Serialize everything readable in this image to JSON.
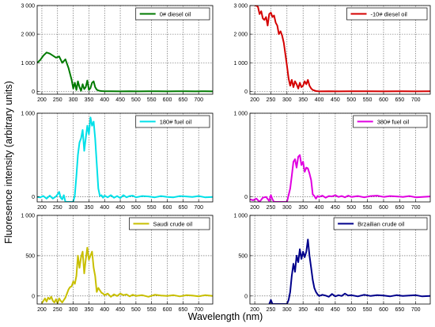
{
  "figure": {
    "ylabel": "Fluoresence intensity (arbitrary units)",
    "xlabel": "Wavelength (nm)"
  },
  "chart_data": [
    {
      "type": "line",
      "title": "",
      "xlim": [
        185,
        745
      ],
      "ylim": [
        -100,
        3000
      ],
      "xticks": [
        200,
        250,
        300,
        350,
        400,
        450,
        500,
        550,
        600,
        650,
        700
      ],
      "xticklabels": [
        "200",
        "250",
        "300",
        "350",
        "400",
        "450",
        "500",
        "550",
        "600",
        "650",
        "700"
      ],
      "yticks": [
        0,
        1000,
        2000,
        3000
      ],
      "yticklabels": [
        "0",
        "1 000",
        "2 000",
        "3 000"
      ],
      "grid": true,
      "legend_position": "top-right",
      "series": [
        {
          "name": "0# diesel oil",
          "color": "#007a00",
          "x": [
            185,
            195,
            205,
            215,
            225,
            235,
            245,
            255,
            265,
            275,
            285,
            295,
            300,
            305,
            310,
            315,
            320,
            325,
            330,
            335,
            340,
            345,
            350,
            355,
            360,
            365,
            370,
            375,
            380,
            385,
            390,
            400,
            420,
            450,
            480,
            510,
            540,
            570,
            600,
            630,
            660,
            690,
            720,
            745
          ],
          "y": [
            1000,
            1100,
            1250,
            1360,
            1320,
            1250,
            1180,
            1220,
            1000,
            1120,
            820,
            400,
            100,
            300,
            50,
            350,
            150,
            20,
            250,
            80,
            150,
            380,
            50,
            120,
            300,
            350,
            150,
            60,
            30,
            20,
            10,
            5,
            5,
            0,
            5,
            0,
            5,
            5,
            0,
            5,
            5,
            0,
            5,
            0
          ]
        }
      ]
    },
    {
      "type": "line",
      "title": "",
      "xlim": [
        185,
        745
      ],
      "ylim": [
        -100,
        3000
      ],
      "xticks": [
        200,
        250,
        300,
        350,
        400,
        450,
        500,
        550,
        600,
        650,
        700
      ],
      "xticklabels": [
        "200",
        "250",
        "300",
        "350",
        "400",
        "450",
        "500",
        "550",
        "600",
        "650",
        "700"
      ],
      "yticks": [
        0,
        1000,
        2000,
        3000
      ],
      "yticklabels": [
        "0",
        "1 000",
        "2 000",
        "3 000"
      ],
      "grid": true,
      "legend_position": "top-right",
      "series": [
        {
          "name": "-10# diesel oil",
          "color": "#d40000",
          "x": [
            200,
            205,
            210,
            215,
            220,
            225,
            230,
            235,
            240,
            245,
            250,
            255,
            260,
            265,
            270,
            275,
            280,
            285,
            290,
            295,
            300,
            305,
            310,
            315,
            320,
            325,
            330,
            335,
            340,
            345,
            350,
            355,
            360,
            365,
            370,
            375,
            380,
            390,
            400,
            430,
            460,
            500,
            550,
            600,
            650,
            700,
            745
          ],
          "y": [
            3000,
            3000,
            2950,
            2700,
            2800,
            2550,
            2500,
            2600,
            2300,
            2700,
            2750,
            2600,
            2650,
            2400,
            2300,
            2000,
            2100,
            1950,
            1700,
            1300,
            900,
            450,
            200,
            400,
            150,
            350,
            250,
            100,
            300,
            150,
            200,
            350,
            250,
            400,
            200,
            100,
            50,
            10,
            0,
            5,
            0,
            5,
            5,
            0,
            5,
            0,
            5
          ]
        }
      ]
    },
    {
      "type": "line",
      "title": "",
      "xlim": [
        185,
        745
      ],
      "ylim": [
        -60,
        1000
      ],
      "xticks": [
        200,
        250,
        300,
        350,
        400,
        450,
        500,
        550,
        600,
        650,
        700
      ],
      "xticklabels": [
        "200",
        "250",
        "300",
        "350",
        "400",
        "450",
        "500",
        "550",
        "600",
        "650",
        "700"
      ],
      "yticks": [
        0,
        1000
      ],
      "yticklabels": [
        "0",
        "1 000"
      ],
      "grid": true,
      "legend_position": "top-right",
      "series": [
        {
          "name": "180# fuel oil",
          "color": "#00e0e8",
          "x": [
            185,
            195,
            205,
            215,
            225,
            235,
            245,
            250,
            255,
            260,
            265,
            270,
            275,
            280,
            285,
            290,
            295,
            300,
            305,
            310,
            315,
            320,
            325,
            330,
            335,
            340,
            345,
            350,
            355,
            360,
            365,
            370,
            375,
            380,
            385,
            390,
            395,
            400,
            410,
            420,
            430,
            440,
            450,
            460,
            470,
            480,
            490,
            500,
            520,
            540,
            560,
            580,
            600,
            620,
            640,
            660,
            680,
            700,
            720,
            745
          ],
          "y": [
            0,
            -5,
            10,
            -20,
            15,
            -20,
            5,
            30,
            60,
            -10,
            -30,
            20,
            -60,
            -60,
            -60,
            -60,
            -60,
            -60,
            20,
            250,
            500,
            650,
            700,
            800,
            550,
            700,
            850,
            750,
            950,
            850,
            900,
            700,
            400,
            100,
            10,
            20,
            -10,
            15,
            -5,
            20,
            -10,
            10,
            -15,
            20,
            -5,
            10,
            15,
            -5,
            10,
            5,
            -5,
            10,
            0,
            -5,
            10,
            5,
            0,
            10,
            -5,
            0
          ]
        }
      ]
    },
    {
      "type": "line",
      "title": "",
      "xlim": [
        185,
        745
      ],
      "ylim": [
        -60,
        1000
      ],
      "xticks": [
        200,
        250,
        300,
        350,
        400,
        450,
        500,
        550,
        600,
        650,
        700
      ],
      "xticklabels": [
        "200",
        "250",
        "300",
        "350",
        "400",
        "450",
        "500",
        "550",
        "600",
        "650",
        "700"
      ],
      "yticks": [
        0,
        1000
      ],
      "yticklabels": [
        "0",
        "1 000"
      ],
      "grid": true,
      "legend_position": "top-right",
      "series": [
        {
          "name": "380# fuel oil",
          "color": "#e000e0",
          "x": [
            185,
            195,
            205,
            215,
            225,
            235,
            245,
            250,
            255,
            260,
            265,
            270,
            275,
            280,
            285,
            290,
            295,
            300,
            305,
            310,
            315,
            320,
            325,
            330,
            335,
            340,
            345,
            350,
            355,
            360,
            365,
            370,
            375,
            380,
            385,
            390,
            395,
            400,
            410,
            420,
            430,
            440,
            450,
            460,
            470,
            480,
            490,
            500,
            520,
            540,
            560,
            580,
            600,
            620,
            640,
            660,
            680,
            700,
            720,
            745
          ],
          "y": [
            -30,
            -40,
            -20,
            -60,
            -10,
            0,
            -50,
            20,
            -30,
            -60,
            -60,
            -60,
            -60,
            -60,
            -60,
            -60,
            -60,
            -60,
            20,
            100,
            250,
            420,
            450,
            350,
            480,
            500,
            380,
            420,
            300,
            350,
            340,
            280,
            200,
            30,
            10,
            -20,
            10,
            0,
            15,
            -10,
            10,
            5,
            20,
            0,
            10,
            -5,
            15,
            0,
            10,
            -5,
            10,
            15,
            0,
            10,
            5,
            0,
            10,
            -5,
            0,
            5
          ]
        }
      ]
    },
    {
      "type": "line",
      "title": "",
      "xlim": [
        185,
        745
      ],
      "ylim": [
        -100,
        1000
      ],
      "xticks": [
        200,
        250,
        300,
        350,
        400,
        450,
        500,
        550,
        600,
        650,
        700
      ],
      "xticklabels": [
        "200",
        "250",
        "300",
        "350",
        "400",
        "450",
        "500",
        "550",
        "600",
        "650",
        "700"
      ],
      "yticks": [
        0,
        500,
        1000
      ],
      "yticklabels": [
        "0",
        "500",
        "1 000"
      ],
      "grid": true,
      "legend_position": "top-right",
      "series": [
        {
          "name": "Saudi crude oil",
          "color": "#c8bf00",
          "x": [
            200,
            205,
            210,
            215,
            220,
            225,
            230,
            235,
            240,
            245,
            250,
            255,
            260,
            265,
            270,
            275,
            280,
            285,
            290,
            295,
            300,
            305,
            310,
            315,
            320,
            325,
            330,
            335,
            340,
            345,
            350,
            355,
            360,
            365,
            370,
            375,
            380,
            385,
            390,
            395,
            400,
            410,
            420,
            430,
            440,
            450,
            460,
            470,
            480,
            490,
            500,
            520,
            540,
            560,
            580,
            600,
            620,
            640,
            660,
            680,
            700,
            720,
            745
          ],
          "y": [
            -90,
            -60,
            -30,
            -70,
            -20,
            -40,
            -10,
            -60,
            -80,
            -40,
            -90,
            -30,
            -60,
            -80,
            -50,
            -20,
            30,
            80,
            110,
            120,
            180,
            150,
            250,
            500,
            350,
            480,
            550,
            280,
            450,
            600,
            450,
            500,
            550,
            350,
            250,
            50,
            100,
            70,
            40,
            30,
            10,
            30,
            -10,
            20,
            0,
            30,
            10,
            20,
            -5,
            15,
            0,
            10,
            -10,
            15,
            5,
            0,
            10,
            -5,
            10,
            5,
            -5,
            10,
            0
          ]
        }
      ]
    },
    {
      "type": "line",
      "title": "",
      "xlim": [
        185,
        745
      ],
      "ylim": [
        -100,
        1000
      ],
      "xticks": [
        200,
        250,
        300,
        350,
        400,
        450,
        500,
        550,
        600,
        650,
        700
      ],
      "xticklabels": [
        "200",
        "250",
        "300",
        "350",
        "400",
        "450",
        "500",
        "550",
        "600",
        "650",
        "700"
      ],
      "yticks": [
        0,
        500,
        1000
      ],
      "yticklabels": [
        "0",
        "500",
        "1 000"
      ],
      "grid": true,
      "legend_position": "top-right",
      "series": [
        {
          "name": "Brzailian crude oil",
          "color": "#00008b",
          "x": [
            245,
            250,
            255,
            260,
            265,
            270,
            275,
            280,
            285,
            290,
            295,
            300,
            305,
            310,
            315,
            320,
            325,
            330,
            335,
            340,
            345,
            350,
            355,
            360,
            365,
            370,
            375,
            380,
            385,
            390,
            395,
            400,
            410,
            420,
            430,
            440,
            450,
            460,
            470,
            480,
            490,
            500,
            520,
            540,
            560,
            580,
            600,
            620,
            640,
            660,
            680,
            700,
            720,
            745
          ],
          "y": [
            -100,
            -50,
            -100,
            -100,
            -100,
            -100,
            -100,
            -100,
            -100,
            -100,
            -100,
            -100,
            -50,
            50,
            250,
            400,
            300,
            500,
            420,
            580,
            460,
            550,
            480,
            550,
            700,
            500,
            350,
            200,
            100,
            50,
            20,
            0,
            15,
            5,
            -10,
            25,
            -5,
            10,
            0,
            30,
            5,
            10,
            -5,
            15,
            0,
            10,
            5,
            -5,
            10,
            0,
            5,
            10,
            -5,
            0
          ]
        }
      ]
    }
  ]
}
